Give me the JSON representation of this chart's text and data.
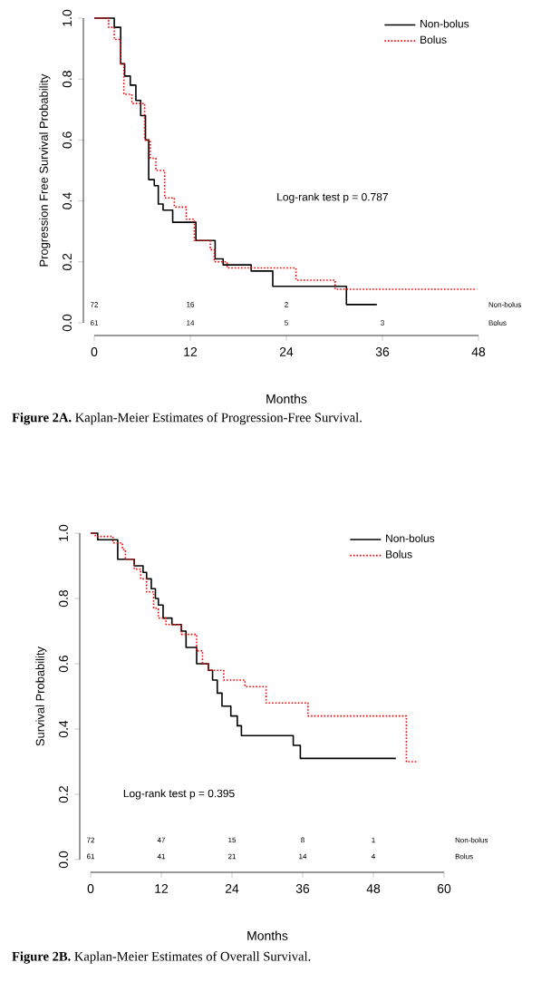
{
  "chart_data": [
    {
      "type": "step",
      "title": "**Figure 2A.** Kaplan-Meier Estimates of Progression-Free Survival.",
      "xlabel": "Months",
      "ylabel": "Progression Free Survival Probability",
      "xlim": [
        0,
        48
      ],
      "xticks": [
        0,
        12,
        24,
        36,
        48
      ],
      "ylim": [
        0,
        1
      ],
      "yticks": [
        {
          "value": 0,
          "label": "0.0"
        },
        {
          "value": 0.2,
          "label": "0.2"
        },
        {
          "value": 0.4,
          "label": "0.4"
        },
        {
          "value": 0.6,
          "label": "0.6"
        },
        {
          "value": 0.8,
          "label": "0.8"
        },
        {
          "value": 1,
          "label": "1.0"
        }
      ],
      "legend": "top right",
      "grid": false,
      "series": [
        {
          "name": "Non-bolus",
          "color": "#000000",
          "line_style": "solid",
          "x": [
            0,
            2.5,
            3.3,
            3.8,
            4.5,
            5.2,
            5.8,
            6.4,
            6.8,
            7.5,
            8,
            8.6,
            9.8,
            12.7,
            15.1,
            16.1,
            19.6,
            22.3,
            31.5,
            35.3
          ],
          "values": [
            1.0,
            0.97,
            0.85,
            0.81,
            0.78,
            0.73,
            0.68,
            0.6,
            0.47,
            0.45,
            0.39,
            0.37,
            0.33,
            0.27,
            0.21,
            0.19,
            0.17,
            0.12,
            0.06,
            0.06
          ]
        },
        {
          "name": "Bolus",
          "color": "#ff0000",
          "line_style": "dotted",
          "x": [
            0,
            1.8,
            2.5,
            3.3,
            3.7,
            4.7,
            6.3,
            7,
            7.7,
            8.8,
            10,
            11.5,
            12.5,
            14.5,
            15,
            16.6,
            25.2,
            30.1,
            47.8
          ],
          "values": [
            1.0,
            0.97,
            0.93,
            0.85,
            0.75,
            0.72,
            0.6,
            0.54,
            0.5,
            0.41,
            0.38,
            0.34,
            0.27,
            0.24,
            0.2,
            0.18,
            0.14,
            0.11,
            0.11
          ]
        }
      ],
      "annotations": [
        "Log-rank test p = 0.787",
        "Non-bolus",
        "Bolus",
        "72",
        "16",
        "2",
        "61",
        "14",
        "5",
        "3"
      ]
    },
    {
      "type": "step",
      "title": "**Figure 2B.** Kaplan-Meier Estimates of Overall Survival.",
      "xlabel": "Months",
      "ylabel": "Survival Probability",
      "xlim": [
        0,
        60
      ],
      "xticks": [
        0,
        12,
        24,
        36,
        48,
        60
      ],
      "ylim": [
        0,
        1
      ],
      "yticks": [
        {
          "value": 0,
          "label": "0.0"
        },
        {
          "value": 0.2,
          "label": "0.2"
        },
        {
          "value": 0.4,
          "label": "0.4"
        },
        {
          "value": 0.6,
          "label": "0.6"
        },
        {
          "value": 0.8,
          "label": "0.8"
        },
        {
          "value": 1,
          "label": "1.0"
        }
      ],
      "legend": "top right",
      "grid": false,
      "series": [
        {
          "name": "Non-bolus",
          "color": "#000000",
          "line_style": "solid",
          "x": [
            0,
            1.2,
            4.6,
            7.4,
            8.9,
            9.5,
            10.3,
            11,
            11.5,
            12.3,
            13.8,
            15.4,
            16.2,
            18,
            20,
            20.7,
            21.5,
            22.3,
            23.8,
            24.9,
            25.6,
            34.4,
            35.6,
            51.8
          ],
          "values": [
            1.0,
            0.98,
            0.92,
            0.9,
            0.88,
            0.86,
            0.83,
            0.8,
            0.78,
            0.74,
            0.72,
            0.7,
            0.65,
            0.6,
            0.58,
            0.55,
            0.51,
            0.47,
            0.44,
            0.41,
            0.38,
            0.35,
            0.31,
            0.31
          ]
        },
        {
          "name": "Bolus",
          "color": "#ff0000",
          "line_style": "dotted",
          "x": [
            0,
            0.8,
            3.8,
            5.4,
            5.9,
            7.4,
            8.5,
            9.5,
            10.7,
            11.5,
            12.8,
            15.4,
            18,
            19,
            20,
            22.6,
            26.2,
            29.8,
            36.9,
            53.6,
            55.6
          ],
          "values": [
            1.0,
            0.99,
            0.97,
            0.95,
            0.92,
            0.89,
            0.86,
            0.82,
            0.77,
            0.74,
            0.72,
            0.69,
            0.64,
            0.6,
            0.58,
            0.55,
            0.53,
            0.48,
            0.44,
            0.3,
            0.3
          ]
        }
      ],
      "annotations": [
        "Log-rank test p = 0.395",
        "Non-bolus",
        "Bolus",
        "72",
        "47",
        "15",
        "8",
        "1",
        "61",
        "41",
        "21",
        "14",
        "4"
      ]
    }
  ]
}
